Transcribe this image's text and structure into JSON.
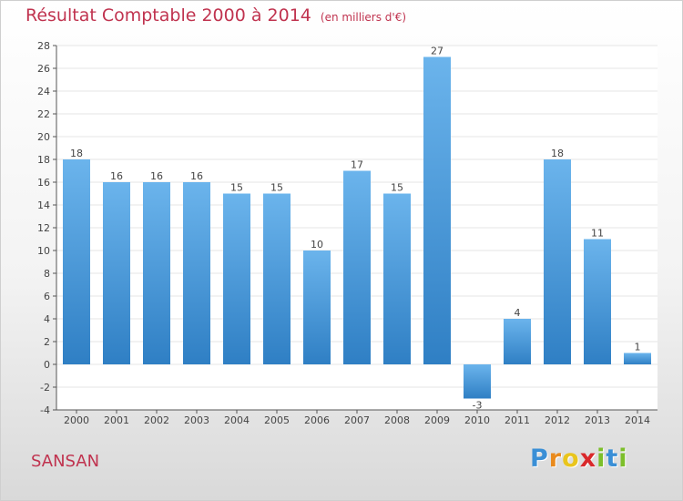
{
  "header": {
    "title": "Résultat Comptable 2000 à 2014",
    "unit": "(en milliers d'€)"
  },
  "location": "SANSAN",
  "brand": {
    "name": "Proxiti",
    "letters": [
      "P",
      "r",
      "o",
      "x",
      "i",
      "t",
      "i"
    ],
    "colors": [
      "#3a8fd6",
      "#e98a1d",
      "#e9c51d",
      "#d9282b",
      "#7cbf2a",
      "#3a8fd6",
      "#7cbf2a"
    ]
  },
  "colors": {
    "bar_light": "#6bb4ec",
    "bar_dark": "#2f7fc4",
    "title": "#c0334f",
    "grid": "#e5e5e5"
  },
  "chart_data": {
    "type": "bar",
    "title": "Résultat Comptable 2000 à 2014",
    "xlabel": "",
    "ylabel": "",
    "categories": [
      "2000",
      "2001",
      "2002",
      "2003",
      "2004",
      "2005",
      "2006",
      "2007",
      "2008",
      "2009",
      "2010",
      "2011",
      "2012",
      "2013",
      "2014"
    ],
    "values": [
      18,
      16,
      16,
      16,
      15,
      15,
      10,
      17,
      15,
      27,
      -3,
      4,
      18,
      11,
      1
    ],
    "ylim": [
      -4,
      28
    ],
    "yticks": [
      -4,
      -2,
      0,
      2,
      4,
      6,
      8,
      10,
      12,
      14,
      16,
      18,
      20,
      22,
      24,
      26,
      28
    ]
  }
}
